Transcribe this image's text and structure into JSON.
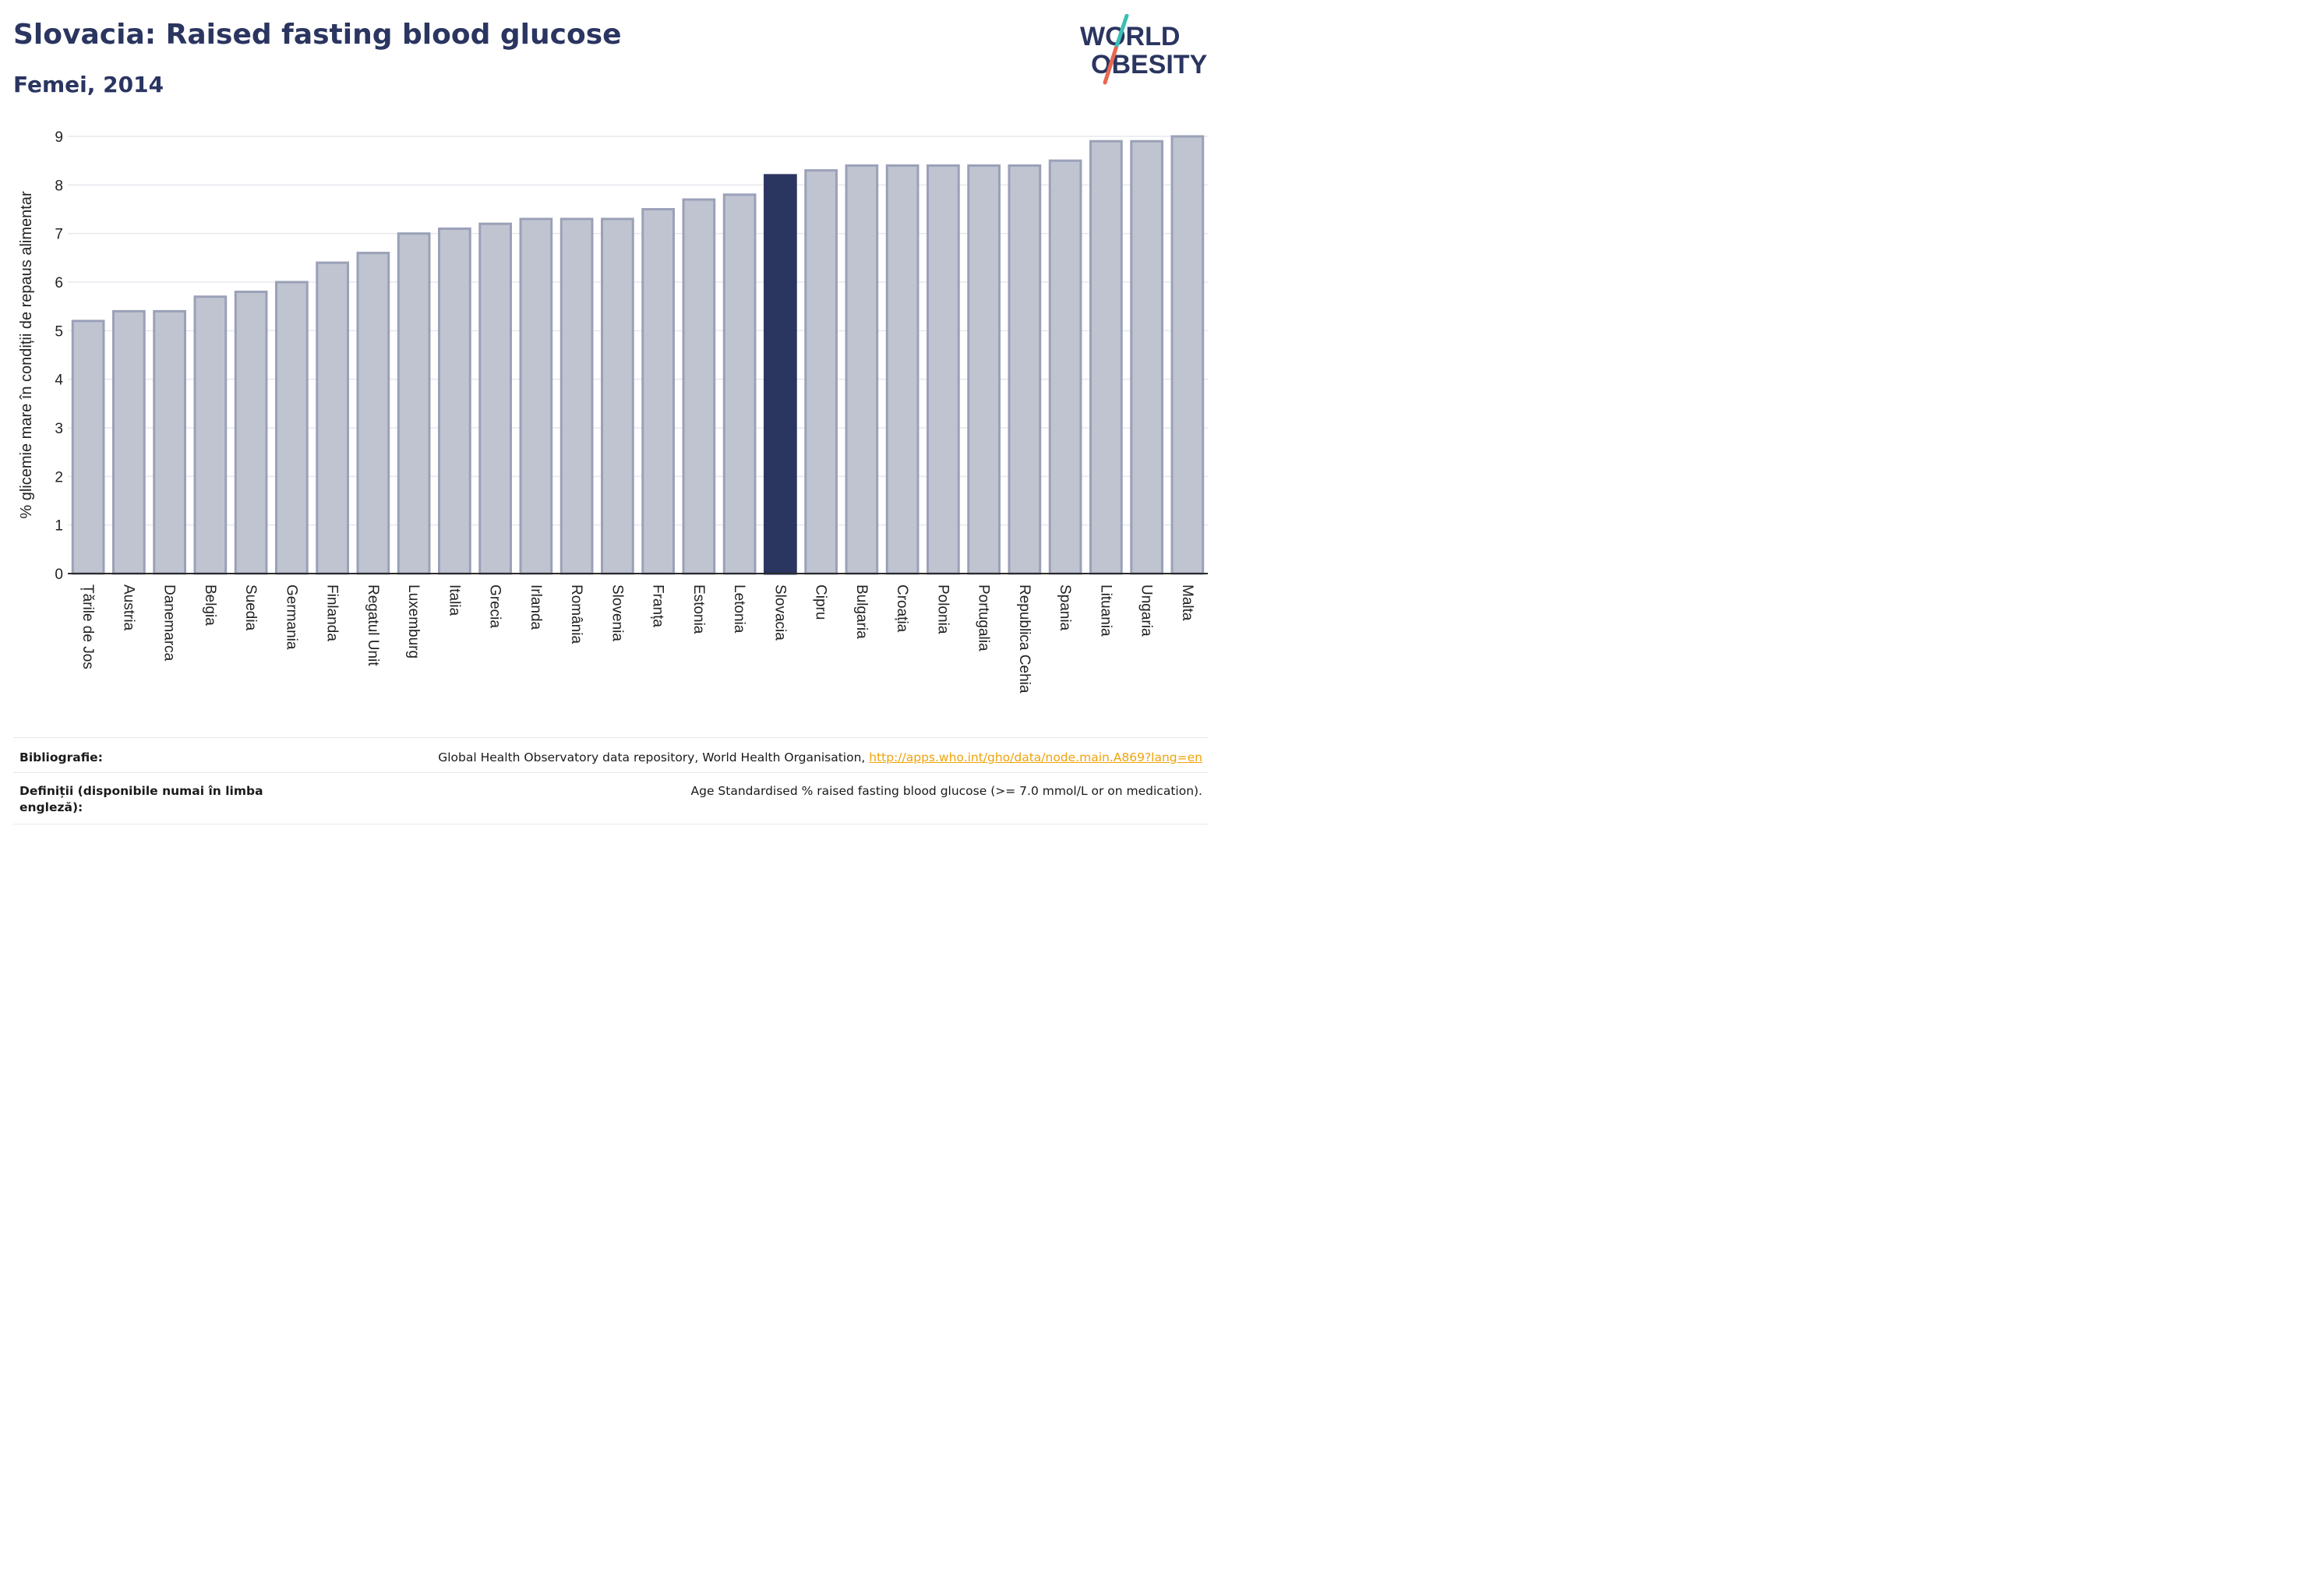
{
  "header": {
    "title": "Slovacia: Raised fasting blood glucose",
    "subtitle": "Femei, 2014",
    "logo_line1": "WORLD",
    "logo_line2": "OBESITY"
  },
  "colors": {
    "highlight_bar": "#2a3560",
    "regular_bar_fill": "#c0c4d1",
    "regular_bar_stroke": "#9aa1b7",
    "title": "#2a3560",
    "link": "#f0a30a",
    "logo_slash_top": "#3bbfb4",
    "logo_slash_bottom": "#e8674f"
  },
  "chart_data": {
    "type": "bar",
    "ylabel": "% glicemie mare în condiții de repaus alimentar",
    "xlabel": "",
    "ylim": [
      0,
      9
    ],
    "yticks": [
      0,
      1,
      2,
      3,
      4,
      5,
      6,
      7,
      8,
      9
    ],
    "grid": true,
    "highlight": "Slovacia",
    "categories": [
      "Țările de Jos",
      "Austria",
      "Danemarca",
      "Belgia",
      "Suedia",
      "Germania",
      "Finlanda",
      "Regatul Unit",
      "Luxemburg",
      "Italia",
      "Grecia",
      "Irlanda",
      "România",
      "Slovenia",
      "Franța",
      "Estonia",
      "Letonia",
      "Slovacia",
      "Cipru",
      "Bulgaria",
      "Croația",
      "Polonia",
      "Portugalia",
      "Republica Cehia",
      "Spania",
      "Lituania",
      "Ungaria",
      "Malta"
    ],
    "values": [
      5.2,
      5.4,
      5.4,
      5.7,
      5.8,
      6.0,
      6.4,
      6.6,
      7.0,
      7.1,
      7.2,
      7.3,
      7.3,
      7.3,
      7.5,
      7.7,
      7.8,
      8.2,
      8.3,
      8.4,
      8.4,
      8.4,
      8.4,
      8.4,
      8.5,
      8.9,
      8.9,
      9.0
    ]
  },
  "footer": {
    "bibliography_label": "Bibliografie:",
    "bibliography_text": "Global Health Observatory data repository, World Health Organisation, ",
    "bibliography_link": "http://apps.who.int/gho/data/node.main.A869?lang=en",
    "definitions_label": "Definiții (disponibile numai în limba engleză):",
    "definitions_text": "Age Standardised % raised fasting blood glucose (>= 7.0 mmol/L or on medication)."
  }
}
